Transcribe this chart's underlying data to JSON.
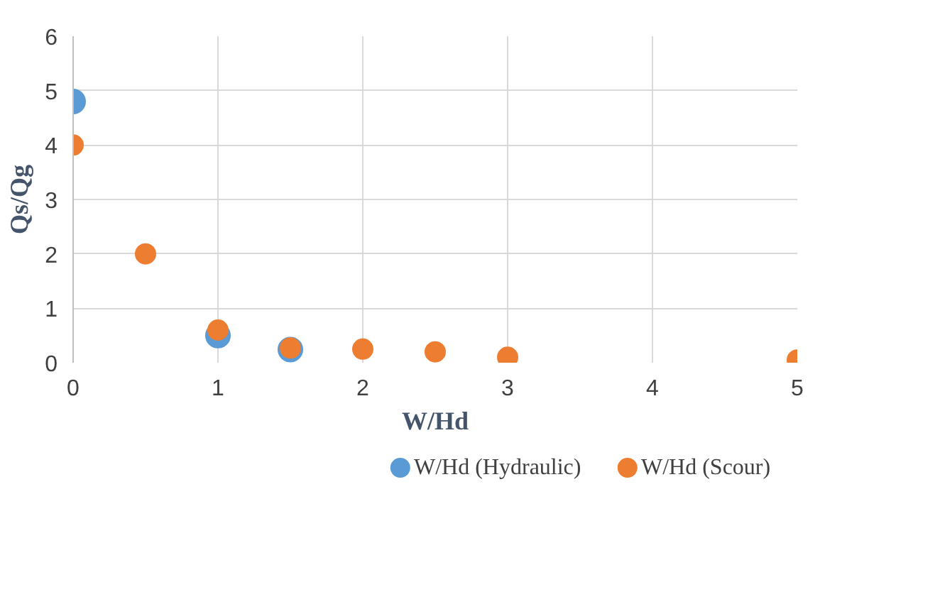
{
  "chart_data": {
    "type": "scatter",
    "xlabel": "W/Hd",
    "ylabel": "Qs/Qg",
    "xlim": [
      0,
      5
    ],
    "ylim": [
      0,
      6
    ],
    "xticks": [
      0,
      1,
      2,
      3,
      4,
      5
    ],
    "yticks": [
      0,
      1,
      2,
      3,
      4,
      5,
      6
    ],
    "grid": true,
    "legend": "bottom",
    "marker": "circle",
    "series": [
      {
        "name": "W/Hd (Hydraulic)",
        "color": "#5b9bd5",
        "x": [
          0,
          1,
          1.5
        ],
        "values": [
          4.8,
          0.5,
          0.24
        ]
      },
      {
        "name": "W/Hd (Scour)",
        "color": "#ed7d31",
        "x": [
          0,
          0.5,
          1,
          1.5,
          2,
          2.5,
          3,
          5
        ],
        "values": [
          4.0,
          2.0,
          0.6,
          0.27,
          0.25,
          0.2,
          0.1,
          0.05
        ]
      }
    ]
  }
}
